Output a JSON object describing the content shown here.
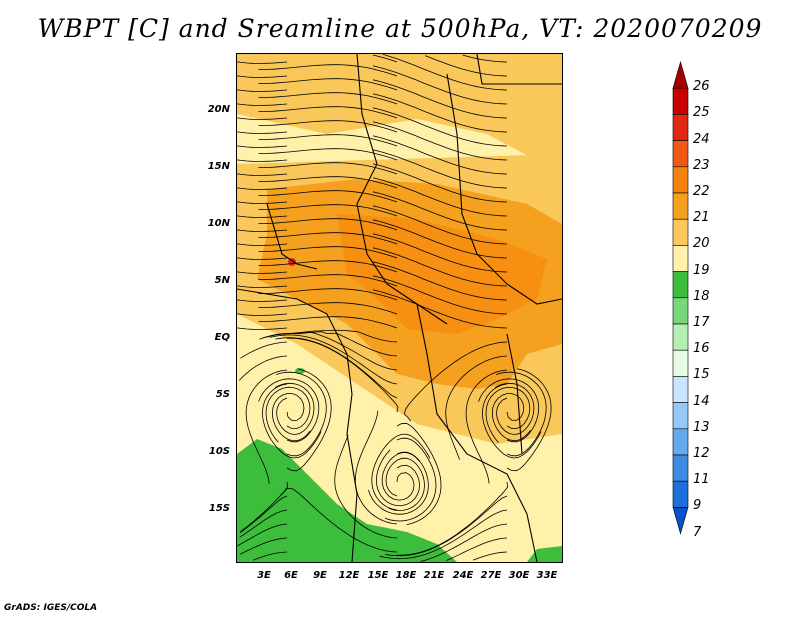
{
  "title": "WBPT [C] and Sreamline at 500hPa, VT: 2020070209",
  "footer": "GrADS: IGES/COLA",
  "lat_labels": [
    "20N",
    "15N",
    "10N",
    "5N",
    "EQ",
    "5S",
    "10S",
    "15S"
  ],
  "lon_labels": [
    "3E",
    "6E",
    "9E",
    "12E",
    "15E",
    "18E",
    "21E",
    "24E",
    "27E",
    "30E",
    "33E"
  ],
  "colorbar": {
    "levels": [
      "26",
      "25",
      "24",
      "23",
      "22",
      "21",
      "20",
      "19",
      "18",
      "17",
      "16",
      "15",
      "14",
      "13",
      "12",
      "11",
      "9",
      "7"
    ],
    "colors": [
      "#a50000",
      "#c80000",
      "#e12814",
      "#f05a14",
      "#f5820a",
      "#f5a01e",
      "#fac85a",
      "#fff0aa",
      "#3cbe3c",
      "#78d778",
      "#b4f0b4",
      "#e6fae6",
      "#c8e6ff",
      "#96c8fa",
      "#64aaf0",
      "#3c8ce6",
      "#1e6edc",
      "#0a50c8"
    ]
  },
  "palette": {
    "pale": "#fff0aa",
    "light_orange": "#fac85a",
    "orange": "#f5a01e",
    "dark_orange": "#f5820a",
    "green": "#3cbe3c",
    "red": "#e12814"
  }
}
